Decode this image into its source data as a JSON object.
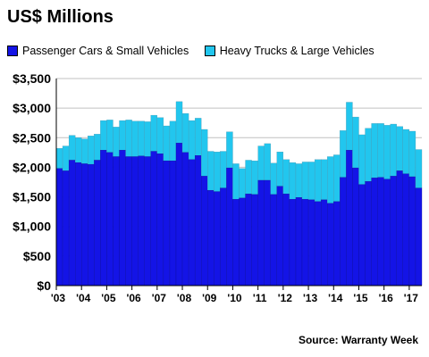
{
  "colors": {
    "passenger": "#1414e6",
    "heavy": "#22c6ee",
    "background": "#ffffff",
    "grid": "#c0c0c0"
  },
  "source_text": "Source: Warranty Week",
  "chart_data": {
    "type": "bar",
    "stacked": true,
    "title": "US$ Millions",
    "xlabel": "",
    "ylabel": "",
    "ylim": [
      0,
      3500
    ],
    "yticks": [
      0,
      500,
      1000,
      1500,
      2000,
      2500,
      3000,
      3500
    ],
    "ytick_labels": [
      "$0",
      "$500",
      "$1,000",
      "$1,500",
      "$2,000",
      "$2,500",
      "$3,000",
      "$3,500"
    ],
    "grid": true,
    "legend_position": "top",
    "x_tick_labels": [
      "'03",
      "'04",
      "'05",
      "'06",
      "'07",
      "'08",
      "'09",
      "'10",
      "'11",
      "'12",
      "'13",
      "'14",
      "'15",
      "'16",
      "'17"
    ],
    "categories": [
      "2003 Q1",
      "2003 Q2",
      "2003 Q3",
      "2003 Q4",
      "2004 Q1",
      "2004 Q2",
      "2004 Q3",
      "2004 Q4",
      "2005 Q1",
      "2005 Q2",
      "2005 Q3",
      "2005 Q4",
      "2006 Q1",
      "2006 Q2",
      "2006 Q3",
      "2006 Q4",
      "2007 Q1",
      "2007 Q2",
      "2007 Q3",
      "2007 Q4",
      "2008 Q1",
      "2008 Q2",
      "2008 Q3",
      "2008 Q4",
      "2009 Q1",
      "2009 Q2",
      "2009 Q3",
      "2009 Q4",
      "2010 Q1",
      "2010 Q2",
      "2010 Q3",
      "2010 Q4",
      "2011 Q1",
      "2011 Q2",
      "2011 Q3",
      "2011 Q4",
      "2012 Q1",
      "2012 Q2",
      "2012 Q3",
      "2012 Q4",
      "2013 Q1",
      "2013 Q2",
      "2013 Q3",
      "2013 Q4",
      "2014 Q1",
      "2014 Q2",
      "2014 Q3",
      "2014 Q4",
      "2015 Q1",
      "2015 Q2",
      "2015 Q3",
      "2015 Q4",
      "2016 Q1",
      "2016 Q2",
      "2016 Q3",
      "2016 Q4",
      "2017 Q1",
      "2017 Q2"
    ],
    "series": [
      {
        "name": "Passenger Cars & Small Vehicles",
        "values": [
          1980,
          1940,
          2120,
          2080,
          2060,
          2050,
          2120,
          2290,
          2250,
          2180,
          2290,
          2180,
          2180,
          2190,
          2180,
          2270,
          2230,
          2110,
          2110,
          2410,
          2250,
          2130,
          2200,
          1850,
          1610,
          1590,
          1650,
          1990,
          1460,
          1480,
          1550,
          1540,
          1780,
          1780,
          1540,
          1680,
          1550,
          1460,
          1490,
          1460,
          1450,
          1420,
          1450,
          1390,
          1420,
          1830,
          2290,
          1990,
          1710,
          1760,
          1820,
          1830,
          1800,
          1850,
          1940,
          1890,
          1840,
          1650
        ]
      },
      {
        "name": "Heavy Trucks & Large Vehicles",
        "values": [
          340,
          420,
          420,
          420,
          420,
          480,
          440,
          500,
          550,
          500,
          500,
          620,
          600,
          590,
          590,
          610,
          610,
          590,
          670,
          700,
          660,
          660,
          630,
          790,
          660,
          670,
          620,
          610,
          600,
          500,
          570,
          570,
          580,
          620,
          530,
          580,
          580,
          620,
          570,
          630,
          640,
          710,
          680,
          790,
          790,
          790,
          810,
          860,
          840,
          900,
          920,
          910,
          910,
          880,
          750,
          750,
          770,
          650
        ]
      }
    ]
  }
}
